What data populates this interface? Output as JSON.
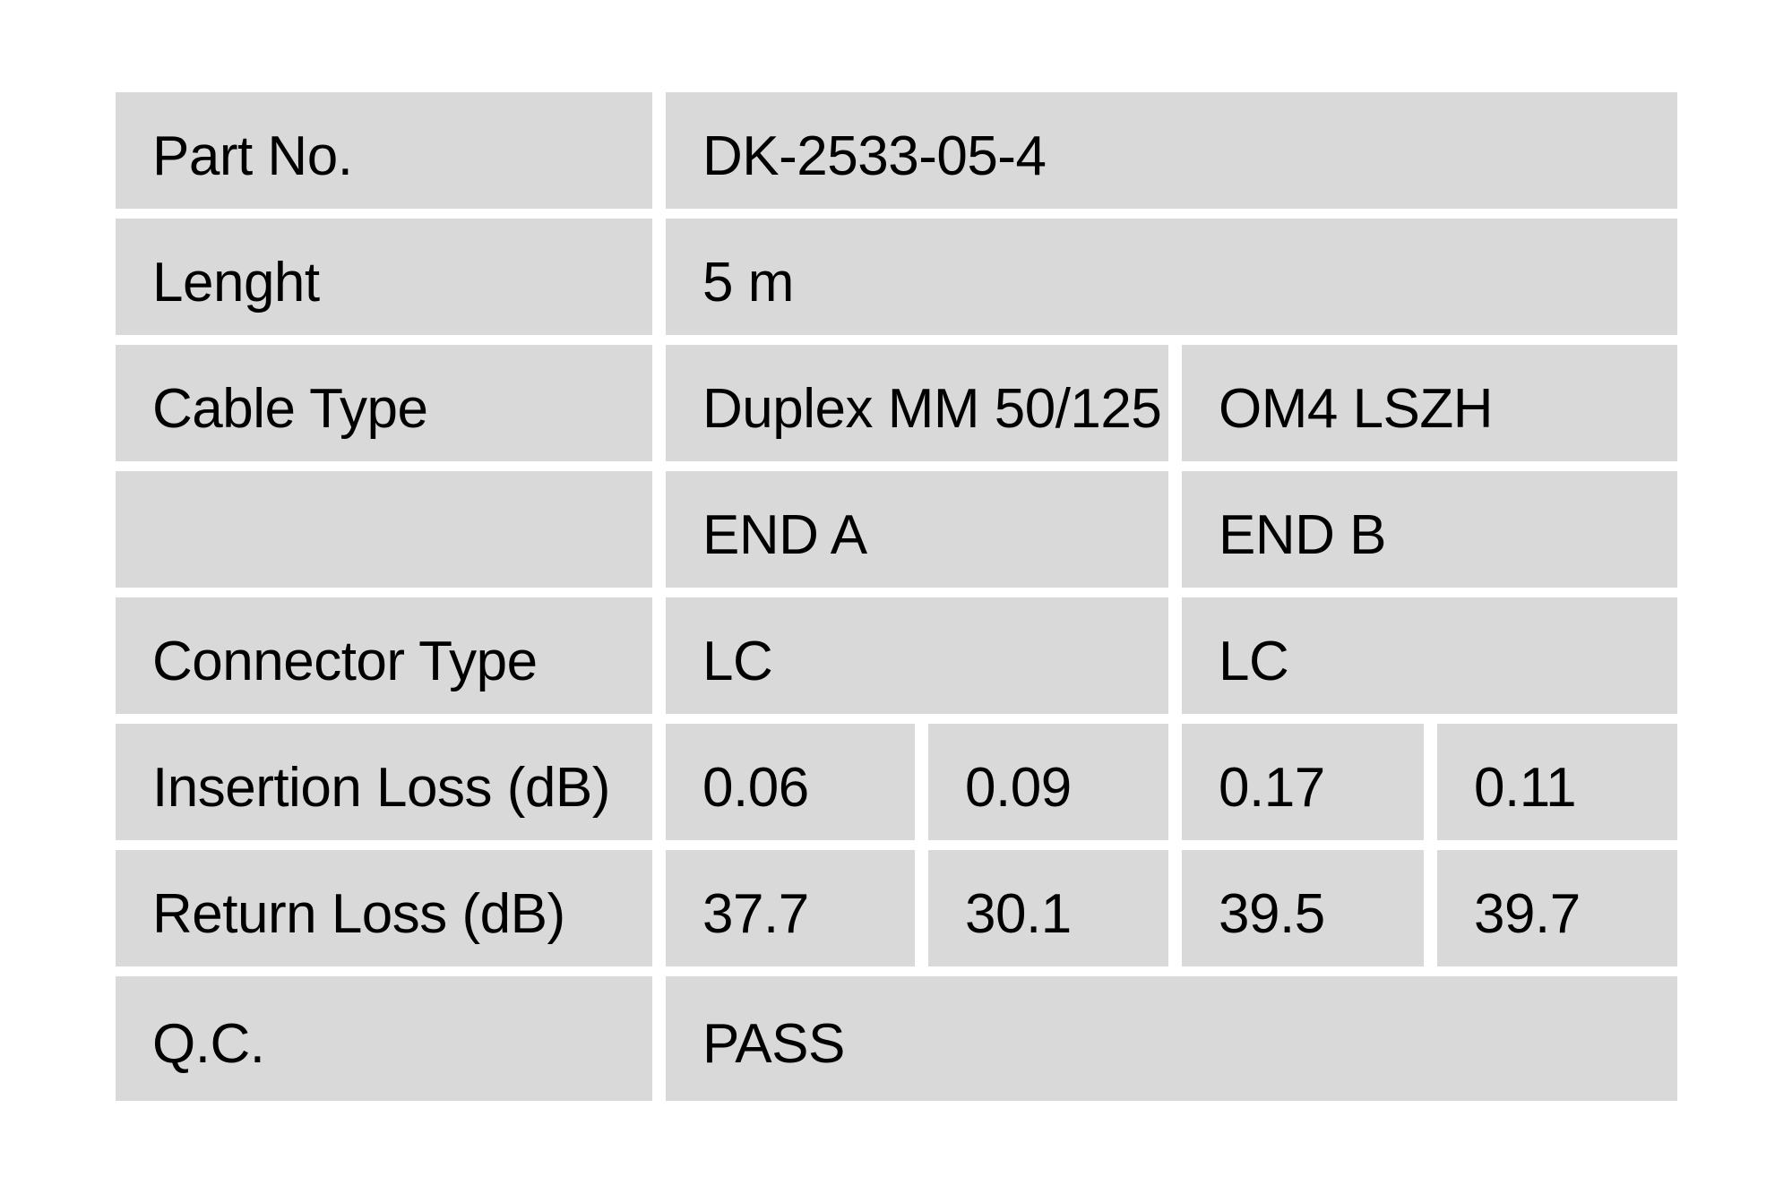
{
  "table": {
    "colors": {
      "cell_bg": "#d9d9d9",
      "gutter": "#ffffff",
      "text": "#000000"
    },
    "rows": [
      {
        "label": "Part No.",
        "values": [
          {
            "text": "DK-2533-05-4",
            "span": 4
          }
        ]
      },
      {
        "label": "Lenght",
        "values": [
          {
            "text": "5 m",
            "span": 4
          }
        ]
      },
      {
        "label": "Cable Type",
        "values": [
          {
            "text": "Duplex MM 50/125",
            "span": 2
          },
          {
            "text": "OM4 LSZH",
            "span": 2
          }
        ]
      },
      {
        "label": "",
        "values": [
          {
            "text": "END A",
            "span": 2
          },
          {
            "text": "END B",
            "span": 2
          }
        ]
      },
      {
        "label": "Connector Type",
        "values": [
          {
            "text": "LC",
            "span": 2
          },
          {
            "text": "LC",
            "span": 2
          }
        ]
      },
      {
        "label": "Insertion Loss (dB)",
        "values": [
          {
            "text": "0.06",
            "span": 1
          },
          {
            "text": "0.09",
            "span": 1
          },
          {
            "text": "0.17",
            "span": 1
          },
          {
            "text": "0.11",
            "span": 1
          }
        ]
      },
      {
        "label": "Return Loss (dB)",
        "values": [
          {
            "text": "37.7",
            "span": 1
          },
          {
            "text": "30.1",
            "span": 1
          },
          {
            "text": "39.5",
            "span": 1
          },
          {
            "text": "39.7",
            "span": 1
          }
        ]
      },
      {
        "label": "Q.C.",
        "values": [
          {
            "text": "PASS",
            "span": 4
          }
        ]
      }
    ]
  }
}
